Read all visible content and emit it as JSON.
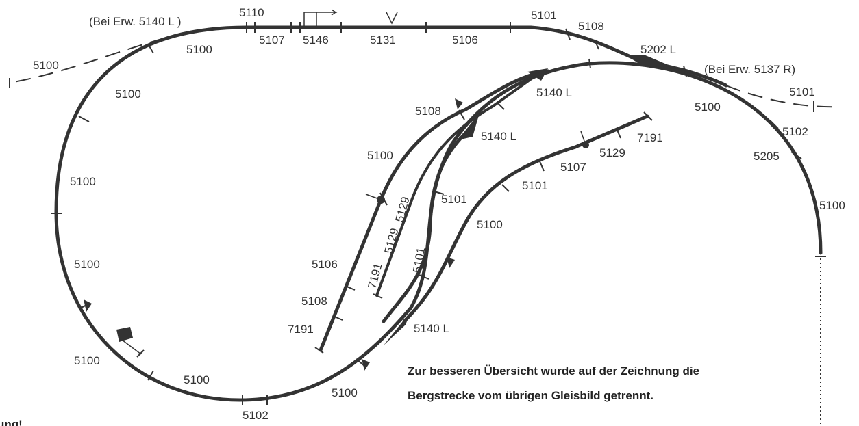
{
  "note": {
    "line1": "Zur besseren Übersicht wurde auf der Zeichnung die",
    "line2": "Bergstrecke vom übrigen Gleisbild getrennt."
  },
  "bottom_left_fragment": "ung!",
  "labels": {
    "bei_erw_left": "(Bei Erw. 5140 L )",
    "bei_erw_right": "(Bei Erw. 5137 R)",
    "top_5110": "5110",
    "top_5107": "5107",
    "top_5146": "5146",
    "top_5131": "5131",
    "top_5106": "5106",
    "top_5101": "5101",
    "top_5108": "5108",
    "top_5202l": "5202 L",
    "top_5100": "5100",
    "left_ext_5100": "5100",
    "left_5100_a": "5100",
    "left_5100_b": "5100",
    "left_5100_c": "5100",
    "bottom_5100_left": "5100",
    "bottom_5100_mid": "5100",
    "bottom_5102": "5102",
    "bottom_5100_right": "5100",
    "right_ext_5101": "5101",
    "right_5100_top": "5100",
    "right_5102": "5102",
    "right_5205": "5205",
    "right_5100_side": "5100",
    "inner_5108": "5108",
    "inner_5140l_top": "5140 L",
    "inner_5140l_mid": "5140 L",
    "inner_5100": "5100",
    "inner_5101_a": "5101",
    "inner_5106": "5106",
    "inner_5108_low": "5108",
    "inner_7191_left": "7191",
    "inner_5140l_low": "5140 L",
    "inner_7191_diag": "7191",
    "inner_5129_diag_a": "5129",
    "inner_5129_diag_b": "5129",
    "inner_5101_diag": "5101",
    "spur_7191": "7191",
    "spur_5129": "5129",
    "spur_5107": "5107",
    "spur_5101": "5101",
    "spur_5100": "5100"
  }
}
